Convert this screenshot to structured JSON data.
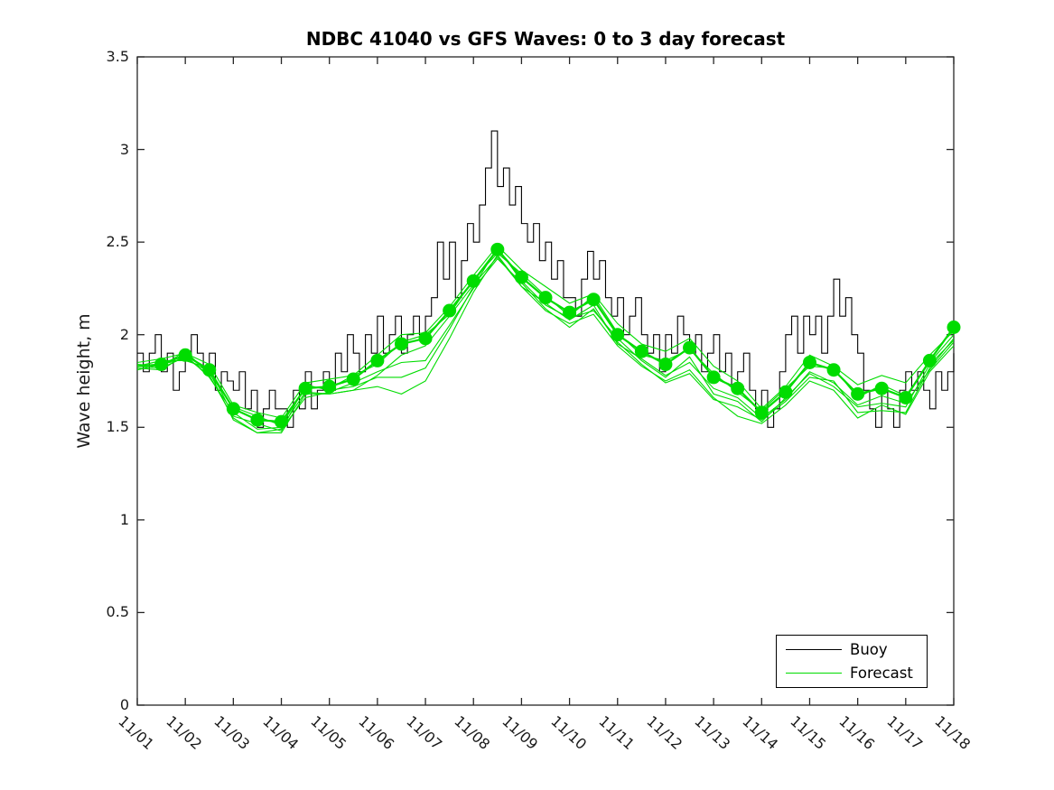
{
  "figure": {
    "background": "#ffffff"
  },
  "chart_data": {
    "type": "line",
    "title": "NDBC 41040 vs GFS Waves: 0 to 3 day forecast",
    "ylabel": "Wave height, m",
    "xlabel": "",
    "ylim": [
      0,
      3.5
    ],
    "xlim_days": [
      0,
      17
    ],
    "grid": false,
    "axis_color": "#262626",
    "y_ticks": {
      "values": [
        0,
        0.5,
        1,
        1.5,
        2,
        2.5,
        3,
        3.5
      ],
      "labels": [
        "0",
        "0.5",
        "1",
        "1.5",
        "2",
        "2.5",
        "3",
        "3.5"
      ]
    },
    "x_ticks": {
      "labels": [
        "11/01",
        "11/02",
        "11/03",
        "11/04",
        "11/05",
        "11/06",
        "11/07",
        "11/08",
        "11/09",
        "11/10",
        "11/11",
        "11/12",
        "11/13",
        "11/14",
        "11/15",
        "11/16",
        "11/17",
        "11/18"
      ]
    },
    "legend": {
      "position": "southeast",
      "items": [
        {
          "label": "Buoy",
          "color": "#000000"
        },
        {
          "label": "Forecast",
          "color": "#00dc00"
        }
      ]
    },
    "buoy": {
      "name": "Buoy",
      "color": "#000000",
      "start_day": 0,
      "dt_days": 0.125,
      "values": [
        1.9,
        1.8,
        1.9,
        2.0,
        1.8,
        1.9,
        1.7,
        1.8,
        1.9,
        2.0,
        1.9,
        1.8,
        1.9,
        1.7,
        1.8,
        1.75,
        1.7,
        1.8,
        1.6,
        1.7,
        1.5,
        1.6,
        1.7,
        1.6,
        1.6,
        1.5,
        1.7,
        1.6,
        1.8,
        1.6,
        1.7,
        1.8,
        1.7,
        1.9,
        1.8,
        2.0,
        1.9,
        1.8,
        2.0,
        1.9,
        2.1,
        1.9,
        2.0,
        2.1,
        1.9,
        2.0,
        2.1,
        2.0,
        2.1,
        2.2,
        2.5,
        2.3,
        2.5,
        2.2,
        2.4,
        2.6,
        2.5,
        2.7,
        2.9,
        3.1,
        2.8,
        2.9,
        2.7,
        2.8,
        2.6,
        2.5,
        2.6,
        2.4,
        2.5,
        2.3,
        2.4,
        2.2,
        2.2,
        2.1,
        2.3,
        2.45,
        2.3,
        2.4,
        2.2,
        2.1,
        2.2,
        2.0,
        2.1,
        2.2,
        2.0,
        1.9,
        2.0,
        1.8,
        2.0,
        1.9,
        2.1,
        2.0,
        1.9,
        2.0,
        1.8,
        1.9,
        2.0,
        1.8,
        1.9,
        1.7,
        1.8,
        1.9,
        1.7,
        1.6,
        1.7,
        1.5,
        1.6,
        1.8,
        2.0,
        2.1,
        1.9,
        2.1,
        2.0,
        2.1,
        1.9,
        2.1,
        2.3,
        2.1,
        2.2,
        2.0,
        1.9,
        1.7,
        1.6,
        1.5,
        1.7,
        1.6,
        1.5,
        1.7,
        1.8,
        1.7,
        1.8,
        1.7,
        1.6,
        1.8,
        1.7,
        1.8,
        1.9
      ]
    },
    "forecast": {
      "name": "Forecast",
      "color": "#00dc00",
      "start_day": 0,
      "dt_days": 0.5,
      "marker_series": {
        "marker": "filled-circle",
        "first_marker_day": 0.5,
        "values": [
          1.83,
          1.84,
          1.89,
          1.81,
          1.6,
          1.54,
          1.53,
          1.71,
          1.72,
          1.76,
          1.86,
          1.95,
          1.98,
          2.13,
          2.29,
          2.46,
          2.31,
          2.2,
          2.12,
          2.19,
          2.0,
          1.91,
          1.84,
          1.93,
          1.77,
          1.71,
          1.58,
          1.69,
          1.85,
          1.81,
          1.68,
          1.71,
          1.66,
          1.86,
          2.04
        ]
      },
      "run_offsets": [
        [
          0.01,
          -0.01,
          0.02,
          -0.02,
          0.01,
          0.02,
          -0.02,
          0.01,
          -0.01,
          0.02,
          -0.02,
          0.01,
          0.02,
          -0.02,
          0.01,
          -0.02,
          0.02,
          0.01,
          -0.02,
          0.02,
          0.01,
          -0.02,
          0.02,
          -0.01,
          0.02,
          -0.02,
          0.01,
          0.02,
          -0.02,
          0.01,
          -0.02,
          0.02,
          0.01,
          -0.01,
          -0.04
        ],
        [
          -0.01,
          -0.03,
          0.0,
          -0.04,
          -0.02,
          -0.05,
          -0.03,
          -0.02,
          -0.04,
          -0.06,
          -0.08,
          -0.06,
          -0.04,
          -0.03,
          -0.02,
          -0.04,
          -0.05,
          -0.03,
          -0.04,
          -0.03,
          -0.05,
          -0.04,
          -0.06,
          -0.08,
          -0.06,
          -0.05,
          -0.03,
          -0.04,
          -0.05,
          -0.07,
          -0.06,
          -0.04,
          -0.03,
          -0.05,
          -0.08
        ],
        [
          0.0,
          -0.02,
          -0.01,
          -0.03,
          -0.05,
          -0.07,
          -0.06,
          -0.03,
          -0.04,
          -0.06,
          -0.14,
          -0.27,
          -0.23,
          -0.15,
          -0.06,
          -0.03,
          -0.05,
          -0.07,
          -0.06,
          -0.08,
          -0.06,
          -0.08,
          -0.09,
          -0.12,
          -0.11,
          -0.15,
          -0.06,
          -0.07,
          -0.1,
          -0.11,
          -0.13,
          -0.09,
          -0.09,
          -0.06,
          -0.1
        ],
        [
          0.02,
          0.03,
          0.01,
          0.03,
          0.02,
          0.04,
          0.02,
          0.03,
          0.04,
          0.02,
          0.03,
          0.05,
          0.03,
          0.02,
          0.03,
          0.02,
          0.04,
          0.06,
          0.05,
          0.03,
          0.06,
          0.04,
          0.07,
          0.05,
          0.06,
          0.04,
          0.02,
          0.03,
          0.04,
          0.02,
          0.05,
          0.07,
          0.08,
          0.03,
          -0.02
        ],
        [
          -0.02,
          0.0,
          -0.02,
          -0.01,
          -0.06,
          -0.07,
          -0.04,
          -0.05,
          -0.03,
          -0.02,
          -0.06,
          -0.1,
          -0.12,
          -0.08,
          -0.04,
          -0.05,
          -0.03,
          -0.06,
          -0.08,
          -0.05,
          -0.04,
          -0.07,
          -0.1,
          -0.14,
          -0.12,
          -0.1,
          -0.04,
          -0.05,
          -0.08,
          -0.06,
          -0.1,
          -0.12,
          -0.08,
          -0.04,
          -0.06
        ],
        [
          0.0,
          0.02,
          -0.03,
          0.01,
          -0.04,
          -0.02,
          -0.05,
          0.02,
          -0.02,
          -0.04,
          -0.09,
          -0.18,
          -0.16,
          -0.1,
          -0.03,
          0.01,
          -0.02,
          -0.04,
          -0.03,
          -0.06,
          -0.02,
          -0.05,
          -0.07,
          -0.05,
          -0.09,
          -0.07,
          -0.05,
          -0.03,
          -0.06,
          -0.09,
          -0.07,
          -0.08,
          -0.05,
          -0.02,
          -0.07
        ]
      ]
    }
  }
}
